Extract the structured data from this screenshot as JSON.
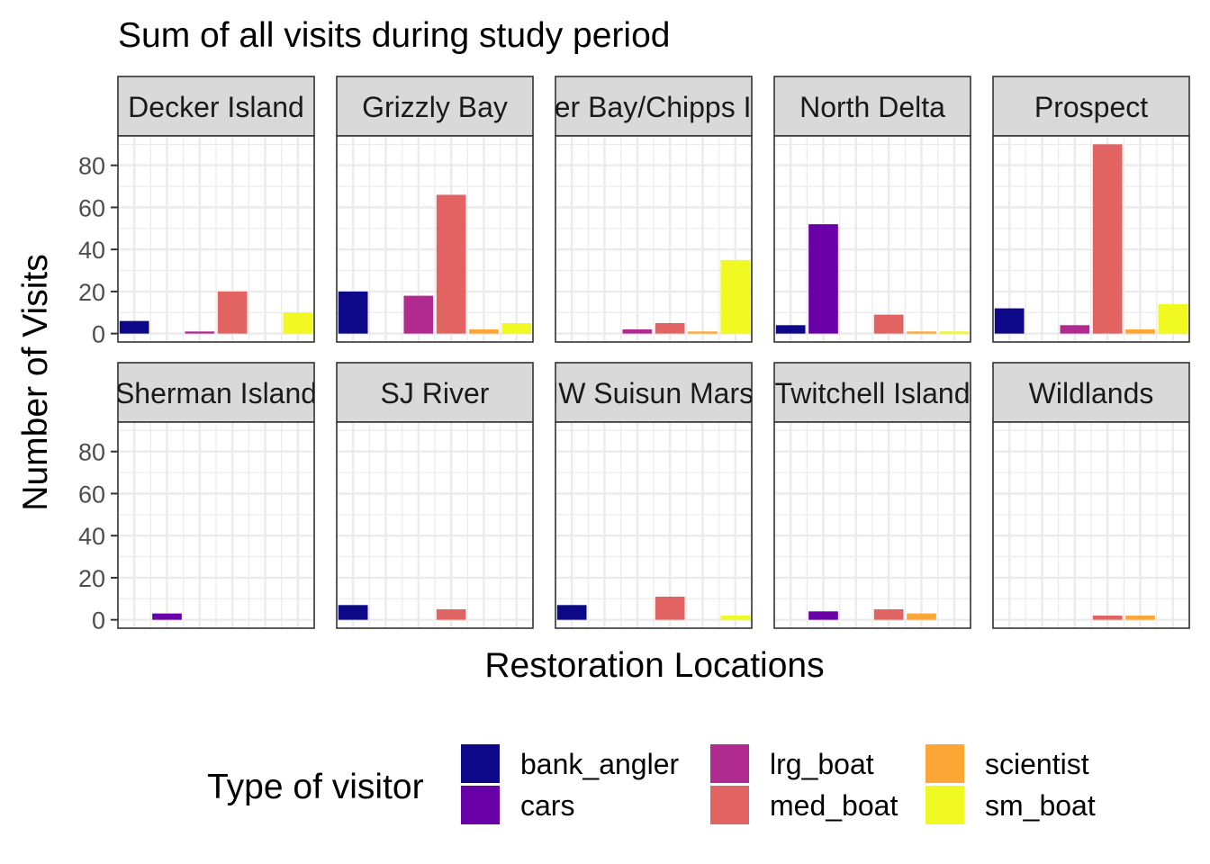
{
  "chart_data": {
    "type": "bar",
    "title": "Sum of all visits during study period",
    "xlabel": "Restoration Locations",
    "ylabel": "Number of Visits",
    "ylim": [
      -4,
      94
    ],
    "yticks": [
      0,
      20,
      40,
      60,
      80
    ],
    "grid": true,
    "legend": {
      "title": "Type of visitor",
      "placement": "bottom"
    },
    "categories": [
      "bank_angler",
      "cars",
      "lrg_boat",
      "med_boat",
      "scientist",
      "sm_boat"
    ],
    "colors": {
      "bank_angler": "#0D0887",
      "cars": "#6A00A8",
      "lrg_boat": "#B12A90",
      "med_boat": "#E16462",
      "scientist": "#FCA636",
      "sm_boat": "#F0F921"
    },
    "panels": [
      {
        "label": "Decker Island",
        "values": {
          "bank_angler": 6,
          "lrg_boat": 1,
          "med_boat": 20,
          "sm_boat": 10
        }
      },
      {
        "label": "Grizzly Bay",
        "values": {
          "bank_angler": 20,
          "lrg_boat": 18,
          "med_boat": 66,
          "scientist": 2,
          "sm_boat": 5
        }
      },
      {
        "label": "Honker Bay/Chipps Island",
        "values": {
          "lrg_boat": 2,
          "med_boat": 5,
          "scientist": 1,
          "sm_boat": 35
        }
      },
      {
        "label": "North Delta",
        "values": {
          "bank_angler": 4,
          "cars": 52,
          "med_boat": 9,
          "scientist": 1,
          "sm_boat": 1
        }
      },
      {
        "label": "Prospect",
        "values": {
          "bank_angler": 12,
          "lrg_boat": 4,
          "med_boat": 90,
          "scientist": 2,
          "sm_boat": 14
        }
      },
      {
        "label": "Sherman Island",
        "values": {
          "cars": 3
        }
      },
      {
        "label": "SJ River",
        "values": {
          "bank_angler": 7,
          "med_boat": 5
        }
      },
      {
        "label": "NW Suisun Marsh",
        "values": {
          "bank_angler": 7,
          "med_boat": 11,
          "sm_boat": 2
        }
      },
      {
        "label": "Twitchell Island",
        "values": {
          "cars": 4,
          "med_boat": 5,
          "scientist": 3
        }
      },
      {
        "label": "Wildlands",
        "values": {
          "med_boat": 2,
          "scientist": 2
        }
      }
    ]
  }
}
